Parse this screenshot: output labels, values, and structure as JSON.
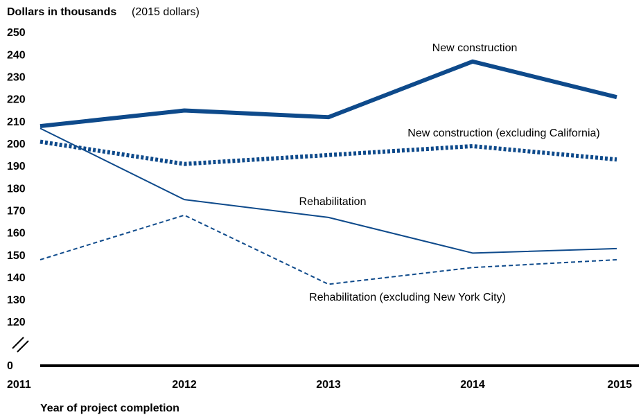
{
  "chart_data": {
    "type": "line",
    "title": "Dollars in thousands",
    "subtitle": "(2015 dollars)",
    "x_label": "Year of project completion",
    "categories": [
      "2011",
      "2012",
      "2013",
      "2014",
      "2015"
    ],
    "series": [
      {
        "name": "New construction",
        "color": "#0e4a8b",
        "width": 6,
        "style": "solid",
        "values": [
          208,
          215,
          212,
          237,
          221
        ]
      },
      {
        "name": "New construction (excluding California)",
        "color": "#0e4a8b",
        "width": 6,
        "style": "dotted",
        "values": [
          201,
          191,
          195,
          199,
          193
        ]
      },
      {
        "name": "Rehabilitation",
        "color": "#0e4a8b",
        "width": 2,
        "style": "solid",
        "values": [
          207,
          175,
          167,
          151,
          153
        ]
      },
      {
        "name": "Rehabilitation (excluding New York City)",
        "color": "#0e4a8b",
        "width": 2,
        "style": "dashed",
        "values": [
          148,
          168,
          137,
          144.5,
          148
        ]
      }
    ],
    "ylim": [
      0,
      250
    ],
    "y_break": [
      0,
      120
    ],
    "yticks": [
      250,
      240,
      230,
      220,
      210,
      200,
      190,
      180,
      170,
      160,
      150,
      140,
      130,
      120,
      0
    ]
  }
}
